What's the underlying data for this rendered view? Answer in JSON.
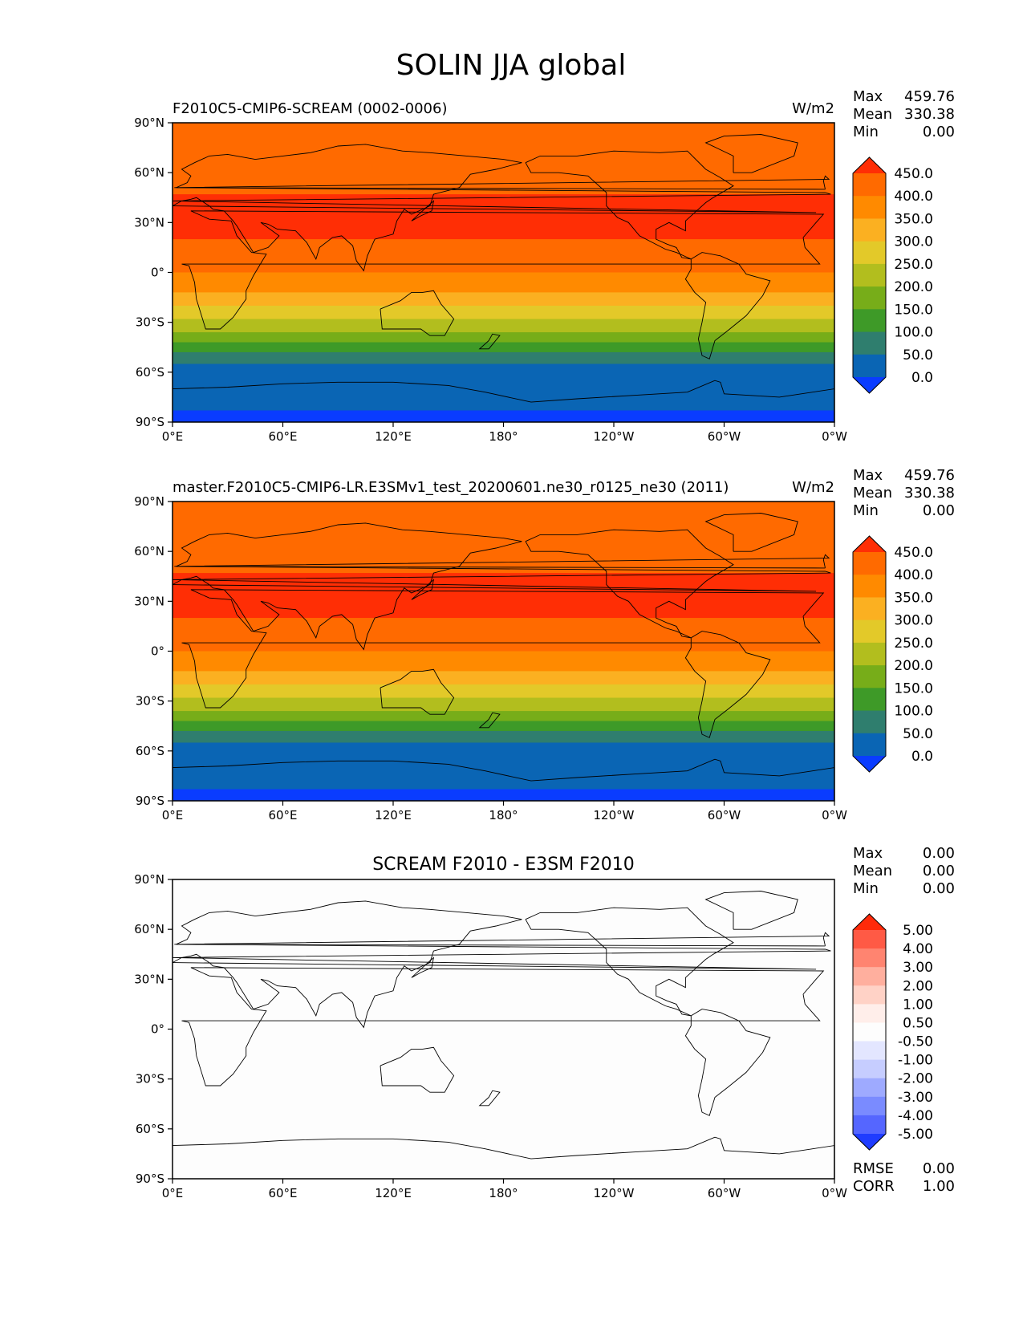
{
  "figure": {
    "title": "SOLIN JJA global"
  },
  "chart_data": [
    {
      "type": "heatmap",
      "title": "F2010C5-CMIP6-SCREAM (0002-0006)",
      "units": "W/m2",
      "stats": {
        "Max": "459.76",
        "Mean": "330.38",
        "Min": "0.00"
      },
      "x_ticks": [
        "0°E",
        "60°E",
        "120°E",
        "180°",
        "120°W",
        "60°W",
        "0°W"
      ],
      "y_ticks": [
        "90°N",
        "60°N",
        "30°N",
        "0°",
        "30°S",
        "60°S",
        "90°S"
      ],
      "xlim": [
        0,
        360
      ],
      "ylim": [
        -90,
        90
      ],
      "colorbar_labels": [
        "450.0",
        "400.0",
        "350.0",
        "300.0",
        "250.0",
        "200.0",
        "150.0",
        "100.0",
        "50.0",
        "0.0"
      ],
      "colorbar_colors": [
        "#ff2e05",
        "#ff6a00",
        "#ff8a00",
        "#fbb021",
        "#e3c929",
        "#b2be1e",
        "#77ad19",
        "#3e9a28",
        "#2f7e6e",
        "#0a65b4",
        "#0a3cff"
      ],
      "bands": [
        {
          "lat_top": 90,
          "lat_bottom": 47,
          "value": 425
        },
        {
          "lat_top": 47,
          "lat_bottom": 20,
          "value": 455
        },
        {
          "lat_top": 20,
          "lat_bottom": 0,
          "value": 425
        },
        {
          "lat_top": 0,
          "lat_bottom": -12,
          "value": 375
        },
        {
          "lat_top": -12,
          "lat_bottom": -20,
          "value": 325
        },
        {
          "lat_top": -20,
          "lat_bottom": -28,
          "value": 275
        },
        {
          "lat_top": -28,
          "lat_bottom": -36,
          "value": 225
        },
        {
          "lat_top": -36,
          "lat_bottom": -42,
          "value": 175
        },
        {
          "lat_top": -42,
          "lat_bottom": -48,
          "value": 125
        },
        {
          "lat_top": -48,
          "lat_bottom": -55,
          "value": 75
        },
        {
          "lat_top": -55,
          "lat_bottom": -83,
          "value": 25
        },
        {
          "lat_top": -83,
          "lat_bottom": -90,
          "value": -5
        }
      ]
    },
    {
      "type": "heatmap",
      "title": "master.F2010C5-CMIP6-LR.E3SMv1_test_20200601.ne30_r0125_ne30 (2011)",
      "units": "W/m2",
      "stats": {
        "Max": "459.76",
        "Mean": "330.38",
        "Min": "0.00"
      },
      "x_ticks": [
        "0°E",
        "60°E",
        "120°E",
        "180°",
        "120°W",
        "60°W",
        "0°W"
      ],
      "y_ticks": [
        "90°N",
        "60°N",
        "30°N",
        "0°",
        "30°S",
        "60°S",
        "90°S"
      ],
      "xlim": [
        0,
        360
      ],
      "ylim": [
        -90,
        90
      ],
      "colorbar_labels": [
        "450.0",
        "400.0",
        "350.0",
        "300.0",
        "250.0",
        "200.0",
        "150.0",
        "100.0",
        "50.0",
        "0.0"
      ],
      "colorbar_colors": [
        "#ff2e05",
        "#ff6a00",
        "#ff8a00",
        "#fbb021",
        "#e3c929",
        "#b2be1e",
        "#77ad19",
        "#3e9a28",
        "#2f7e6e",
        "#0a65b4",
        "#0a3cff"
      ],
      "bands": [
        {
          "lat_top": 90,
          "lat_bottom": 47,
          "value": 425
        },
        {
          "lat_top": 47,
          "lat_bottom": 20,
          "value": 455
        },
        {
          "lat_top": 20,
          "lat_bottom": 0,
          "value": 425
        },
        {
          "lat_top": 0,
          "lat_bottom": -12,
          "value": 375
        },
        {
          "lat_top": -12,
          "lat_bottom": -20,
          "value": 325
        },
        {
          "lat_top": -20,
          "lat_bottom": -28,
          "value": 275
        },
        {
          "lat_top": -28,
          "lat_bottom": -36,
          "value": 225
        },
        {
          "lat_top": -36,
          "lat_bottom": -42,
          "value": 175
        },
        {
          "lat_top": -42,
          "lat_bottom": -48,
          "value": 125
        },
        {
          "lat_top": -48,
          "lat_bottom": -55,
          "value": 75
        },
        {
          "lat_top": -55,
          "lat_bottom": -83,
          "value": 25
        },
        {
          "lat_top": -83,
          "lat_bottom": -90,
          "value": -5
        }
      ]
    },
    {
      "type": "heatmap",
      "title": "SCREAM F2010 - E3SM F2010",
      "units": "",
      "stats": {
        "Max": "0.00",
        "Mean": "0.00",
        "Min": "0.00"
      },
      "x_ticks": [
        "0°E",
        "60°E",
        "120°E",
        "180°",
        "120°W",
        "60°W",
        "0°W"
      ],
      "y_ticks": [
        "90°N",
        "60°N",
        "30°N",
        "0°",
        "30°S",
        "60°S",
        "90°S"
      ],
      "xlim": [
        0,
        360
      ],
      "ylim": [
        -90,
        90
      ],
      "colorbar_labels": [
        "5.00",
        "4.00",
        "3.00",
        "2.00",
        "1.00",
        "0.50",
        "-0.50",
        "-1.00",
        "-2.00",
        "-3.00",
        "-4.00",
        "-5.00"
      ],
      "colorbar_colors": [
        "#ff2a0a",
        "#ff5a45",
        "#ff8470",
        "#ffaf9e",
        "#ffd2c6",
        "#ffeeea",
        "#fdfdfd",
        "#e3e6ff",
        "#c6cdff",
        "#9eaaff",
        "#7a8bff",
        "#5566ff",
        "#1f3cff"
      ],
      "bands": [
        {
          "lat_top": 90,
          "lat_bottom": -90,
          "value": 0
        }
      ],
      "footer_stats": {
        "RMSE": "0.00",
        "CORR": "1.00"
      }
    }
  ]
}
